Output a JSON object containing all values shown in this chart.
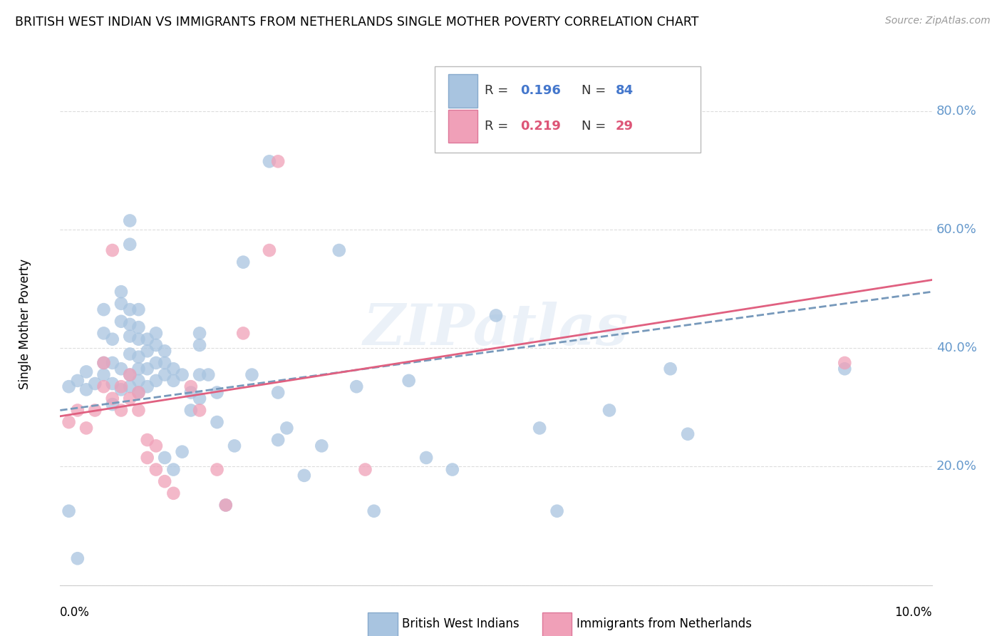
{
  "title": "BRITISH WEST INDIAN VS IMMIGRANTS FROM NETHERLANDS SINGLE MOTHER POVERTY CORRELATION CHART",
  "source": "Source: ZipAtlas.com",
  "ylabel": "Single Mother Poverty",
  "y_ticks": [
    0.0,
    0.2,
    0.4,
    0.6,
    0.8
  ],
  "y_tick_labels": [
    "",
    "20.0%",
    "40.0%",
    "60.0%",
    "80.0%"
  ],
  "xlim": [
    0.0,
    0.1
  ],
  "ylim": [
    0.0,
    0.88
  ],
  "blue_color": "#a8c4e0",
  "pink_color": "#f0a0b8",
  "line_blue_color": "#7799bb",
  "line_pink_color": "#e06080",
  "watermark": "ZIPatlas",
  "blue_scatter": [
    [
      0.001,
      0.335
    ],
    [
      0.002,
      0.345
    ],
    [
      0.003,
      0.33
    ],
    [
      0.003,
      0.36
    ],
    [
      0.004,
      0.34
    ],
    [
      0.005,
      0.375
    ],
    [
      0.005,
      0.355
    ],
    [
      0.005,
      0.425
    ],
    [
      0.005,
      0.465
    ],
    [
      0.006,
      0.34
    ],
    [
      0.006,
      0.305
    ],
    [
      0.006,
      0.375
    ],
    [
      0.006,
      0.415
    ],
    [
      0.007,
      0.33
    ],
    [
      0.007,
      0.365
    ],
    [
      0.007,
      0.445
    ],
    [
      0.007,
      0.475
    ],
    [
      0.007,
      0.495
    ],
    [
      0.008,
      0.335
    ],
    [
      0.008,
      0.355
    ],
    [
      0.008,
      0.39
    ],
    [
      0.008,
      0.42
    ],
    [
      0.008,
      0.44
    ],
    [
      0.008,
      0.465
    ],
    [
      0.008,
      0.575
    ],
    [
      0.008,
      0.615
    ],
    [
      0.009,
      0.325
    ],
    [
      0.009,
      0.345
    ],
    [
      0.009,
      0.365
    ],
    [
      0.009,
      0.385
    ],
    [
      0.009,
      0.415
    ],
    [
      0.009,
      0.435
    ],
    [
      0.009,
      0.465
    ],
    [
      0.01,
      0.335
    ],
    [
      0.01,
      0.365
    ],
    [
      0.01,
      0.395
    ],
    [
      0.01,
      0.415
    ],
    [
      0.011,
      0.345
    ],
    [
      0.011,
      0.375
    ],
    [
      0.011,
      0.405
    ],
    [
      0.011,
      0.425
    ],
    [
      0.012,
      0.215
    ],
    [
      0.012,
      0.355
    ],
    [
      0.012,
      0.375
    ],
    [
      0.012,
      0.395
    ],
    [
      0.013,
      0.195
    ],
    [
      0.013,
      0.345
    ],
    [
      0.013,
      0.365
    ],
    [
      0.014,
      0.225
    ],
    [
      0.014,
      0.355
    ],
    [
      0.015,
      0.295
    ],
    [
      0.015,
      0.325
    ],
    [
      0.016,
      0.315
    ],
    [
      0.016,
      0.355
    ],
    [
      0.016,
      0.405
    ],
    [
      0.016,
      0.425
    ],
    [
      0.017,
      0.355
    ],
    [
      0.018,
      0.325
    ],
    [
      0.018,
      0.275
    ],
    [
      0.019,
      0.135
    ],
    [
      0.02,
      0.235
    ],
    [
      0.021,
      0.545
    ],
    [
      0.022,
      0.355
    ],
    [
      0.024,
      0.715
    ],
    [
      0.025,
      0.245
    ],
    [
      0.025,
      0.325
    ],
    [
      0.026,
      0.265
    ],
    [
      0.028,
      0.185
    ],
    [
      0.03,
      0.235
    ],
    [
      0.032,
      0.565
    ],
    [
      0.034,
      0.335
    ],
    [
      0.036,
      0.125
    ],
    [
      0.04,
      0.345
    ],
    [
      0.042,
      0.215
    ],
    [
      0.045,
      0.195
    ],
    [
      0.05,
      0.455
    ],
    [
      0.055,
      0.265
    ],
    [
      0.057,
      0.125
    ],
    [
      0.063,
      0.295
    ],
    [
      0.07,
      0.365
    ],
    [
      0.072,
      0.255
    ],
    [
      0.09,
      0.365
    ],
    [
      0.001,
      0.125
    ],
    [
      0.002,
      0.045
    ]
  ],
  "pink_scatter": [
    [
      0.001,
      0.275
    ],
    [
      0.002,
      0.295
    ],
    [
      0.003,
      0.265
    ],
    [
      0.004,
      0.295
    ],
    [
      0.005,
      0.335
    ],
    [
      0.005,
      0.375
    ],
    [
      0.006,
      0.315
    ],
    [
      0.006,
      0.565
    ],
    [
      0.007,
      0.295
    ],
    [
      0.007,
      0.335
    ],
    [
      0.008,
      0.315
    ],
    [
      0.008,
      0.355
    ],
    [
      0.009,
      0.295
    ],
    [
      0.009,
      0.325
    ],
    [
      0.01,
      0.215
    ],
    [
      0.01,
      0.245
    ],
    [
      0.011,
      0.195
    ],
    [
      0.011,
      0.235
    ],
    [
      0.012,
      0.175
    ],
    [
      0.013,
      0.155
    ],
    [
      0.015,
      0.335
    ],
    [
      0.016,
      0.295
    ],
    [
      0.018,
      0.195
    ],
    [
      0.019,
      0.135
    ],
    [
      0.021,
      0.425
    ],
    [
      0.024,
      0.565
    ],
    [
      0.025,
      0.715
    ],
    [
      0.035,
      0.195
    ],
    [
      0.09,
      0.375
    ]
  ],
  "blue_line_x": [
    0.0,
    0.1
  ],
  "blue_line_y": [
    0.295,
    0.495
  ],
  "pink_line_x": [
    0.0,
    0.1
  ],
  "pink_line_y": [
    0.285,
    0.515
  ],
  "background_color": "#ffffff",
  "grid_color": "#dddddd",
  "tick_color_y": "#6699cc"
}
